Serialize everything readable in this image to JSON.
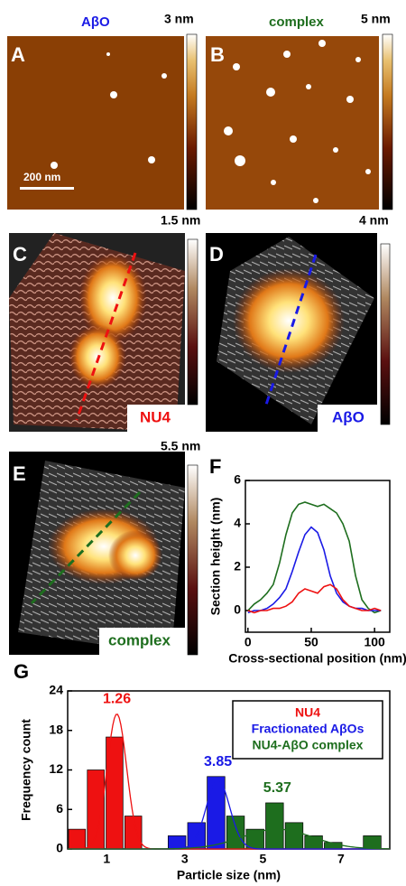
{
  "panels": [
    {
      "label": "A",
      "title": "AβO",
      "scale_max": "3 nm",
      "scale_bar": "200 nm"
    },
    {
      "label": "B",
      "title": "complex",
      "scale_max": "5 nm"
    },
    {
      "label": "C",
      "tag": "NU4",
      "scale_max": "1.5 nm"
    },
    {
      "label": "D",
      "tag": "AβO",
      "scale_max": "4 nm"
    },
    {
      "label": "E",
      "tag": "complex",
      "scale_max": "5.5 nm"
    }
  ],
  "chart_data": [
    {
      "type": "line",
      "label": "F",
      "x_label": "Cross-sectional position (nm)",
      "y_label": "Section height (nm)",
      "x": [
        0,
        5,
        10,
        15,
        20,
        25,
        30,
        35,
        40,
        45,
        50,
        55,
        60,
        65,
        70,
        75,
        80,
        85,
        90,
        95,
        100,
        105
      ],
      "series": [
        {
          "color": "#1e6e1e",
          "values": [
            0,
            0.3,
            0.5,
            0.8,
            1.2,
            2.2,
            3.5,
            4.5,
            4.9,
            5.0,
            4.9,
            4.8,
            4.9,
            4.7,
            4.5,
            4.0,
            3.2,
            1.6,
            0.5,
            0.1,
            -0.1,
            0
          ]
        },
        {
          "color": "#1a1ae6",
          "values": [
            -0.1,
            0,
            0,
            0.1,
            0.3,
            0.6,
            1.0,
            1.8,
            2.7,
            3.5,
            3.85,
            3.6,
            2.8,
            1.6,
            0.8,
            0.4,
            0.2,
            0.1,
            0.1,
            0,
            0,
            0
          ]
        },
        {
          "color": "#ee1111",
          "values": [
            0,
            -0.1,
            0,
            0,
            0.1,
            0.1,
            0.2,
            0.4,
            0.8,
            1.0,
            0.9,
            0.8,
            1.1,
            1.2,
            1.0,
            0.5,
            0.2,
            0.1,
            0,
            0,
            0.1,
            0
          ]
        }
      ],
      "xlim": [
        -2,
        112
      ],
      "ylim": [
        -1,
        6
      ],
      "xticks": [
        0,
        50,
        100
      ],
      "yticks": [
        0,
        2,
        4,
        6
      ]
    },
    {
      "type": "histogram",
      "label": "G",
      "x_label": "Particle size (nm)",
      "y_label": "Frequency count",
      "series": [
        {
          "name": "NU4",
          "color": "#ee1111",
          "bins": [
            0,
            0.48,
            0.96,
            1.44,
            1.92
          ],
          "counts": [
            3,
            12,
            17,
            5
          ],
          "fit": {
            "center": 1.26,
            "peak": 20.5,
            "sigma": 0.25
          }
        },
        {
          "name": "Fractionated AβOs",
          "color": "#1a1ae6",
          "bins": [
            2.55,
            3.05,
            3.55,
            4.05
          ],
          "counts": [
            2,
            4,
            11
          ],
          "fit": {
            "center": 3.85,
            "peak": 10.5,
            "sigma": 0.3
          }
        },
        {
          "name": "NU4-AβO complex",
          "color": "#1e6e1e",
          "bins": [
            4.05,
            4.55,
            5.05,
            5.55,
            6.05,
            6.55,
            7.05,
            7.55,
            8.05
          ],
          "counts": [
            5,
            3,
            7,
            4,
            2,
            1,
            0,
            2
          ],
          "fit": {
            "center": 5.37,
            "peak": 3,
            "sigma": 0.9
          }
        }
      ],
      "xlim": [
        0,
        8.25
      ],
      "ylim": [
        0,
        24
      ],
      "xticks": [
        1,
        3,
        5,
        7
      ],
      "yticks": [
        0,
        6,
        12,
        18,
        24
      ]
    }
  ]
}
